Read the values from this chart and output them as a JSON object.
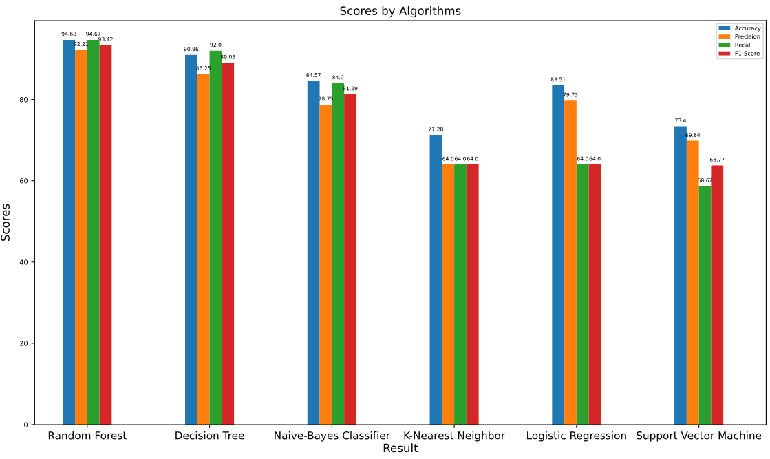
{
  "chart_data": {
    "type": "bar",
    "title": "Scores by Algorithms",
    "xlabel": "Result",
    "ylabel": "Scores",
    "categories": [
      "Random Forest",
      "Decision Tree",
      "Naive-Bayes Classifier",
      "K-Nearest Neighbor",
      "Logistic Regression",
      "Support Vector Machine"
    ],
    "series": [
      {
        "name": "Accuracy",
        "color": "#1f77b4",
        "values": [
          94.68,
          90.96,
          84.57,
          71.28,
          83.51,
          73.4
        ],
        "value_labels": [
          "94.68",
          "90.96",
          "84.57",
          "71.28",
          "83.51",
          "73.4"
        ]
      },
      {
        "name": "Precision",
        "color": "#ff7f0e",
        "values": [
          92.21,
          86.25,
          78.75,
          64.0,
          79.73,
          69.84
        ],
        "value_labels": [
          "92.21",
          "86.25",
          "78.75",
          "64.0",
          "79.73",
          "69.84"
        ]
      },
      {
        "name": "Recall",
        "color": "#2ca02c",
        "values": [
          94.67,
          92.0,
          84.0,
          64.0,
          64.0,
          58.67
        ],
        "value_labels": [
          "94.67",
          "92.0",
          "84.0",
          "64.0",
          "64.0",
          "58.67"
        ]
      },
      {
        "name": "F1-Score",
        "color": "#d62728",
        "values": [
          93.42,
          89.03,
          81.29,
          64.0,
          64.0,
          63.77
        ],
        "value_labels": [
          "93.42",
          "89.03",
          "81.29",
          "64.0",
          "64.0",
          "63.77"
        ]
      }
    ],
    "ylim": [
      0,
      99.4
    ],
    "yticks": [
      0,
      20,
      40,
      60,
      80
    ],
    "grid": false,
    "legend": "top right"
  }
}
